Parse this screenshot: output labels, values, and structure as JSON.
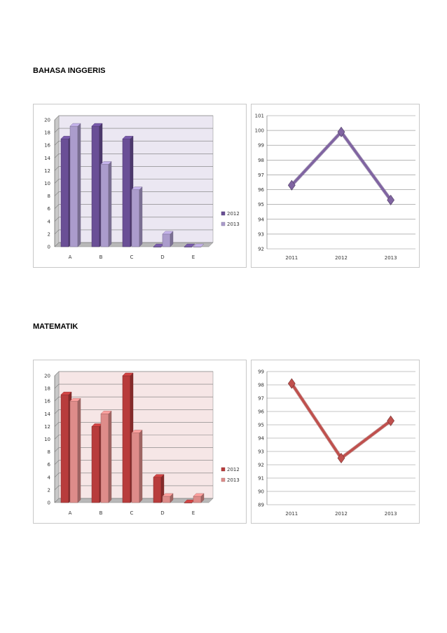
{
  "sections": [
    {
      "title": "BAHASA INGGERIS",
      "bar_chart": {
        "type": "bar",
        "categories": [
          "A",
          "B",
          "C",
          "D",
          "E"
        ],
        "series": [
          {
            "name": "2012",
            "values": [
              17,
              19,
              17,
              0,
              0
            ]
          },
          {
            "name": "2013",
            "values": [
              19,
              13,
              9,
              2,
              0
            ]
          }
        ],
        "ylim": [
          0,
          20
        ],
        "yticks": [
          0,
          2,
          4,
          6,
          8,
          10,
          12,
          14,
          16,
          18,
          20
        ],
        "grid": true,
        "legend": "right",
        "colors": {
          "2012": "#6a4f96",
          "2013": "#ab9ccc",
          "wall": "#ebe7f2"
        }
      },
      "line_chart": {
        "type": "line",
        "x": [
          "2011",
          "2012",
          "2013"
        ],
        "y": [
          96.3,
          99.9,
          95.3
        ],
        "ylim": [
          92,
          101
        ],
        "yticks": [
          92,
          93,
          94,
          95,
          96,
          97,
          98,
          99,
          100,
          101
        ],
        "grid": true,
        "color": "#8064a2"
      }
    },
    {
      "title": "MATEMATIK",
      "bar_chart": {
        "type": "bar",
        "categories": [
          "A",
          "B",
          "C",
          "D",
          "E"
        ],
        "series": [
          {
            "name": "2012",
            "values": [
              17,
              12,
              20,
              4,
              0
            ]
          },
          {
            "name": "2013",
            "values": [
              16,
              14,
              11,
              1,
              1
            ]
          }
        ],
        "ylim": [
          0,
          20
        ],
        "yticks": [
          0,
          2,
          4,
          6,
          8,
          10,
          12,
          14,
          16,
          18,
          20
        ],
        "grid": true,
        "legend": "right",
        "colors": {
          "2012": "#b83c3c",
          "2013": "#de8c8a",
          "wall": "#f6e6e6"
        }
      },
      "line_chart": {
        "type": "line",
        "x": [
          "2011",
          "2012",
          "2013"
        ],
        "y": [
          98.1,
          92.5,
          95.3
        ],
        "ylim": [
          89,
          99
        ],
        "yticks": [
          89,
          90,
          91,
          92,
          93,
          94,
          95,
          96,
          97,
          98,
          99
        ],
        "grid": true,
        "color": "#c0504d"
      }
    }
  ]
}
